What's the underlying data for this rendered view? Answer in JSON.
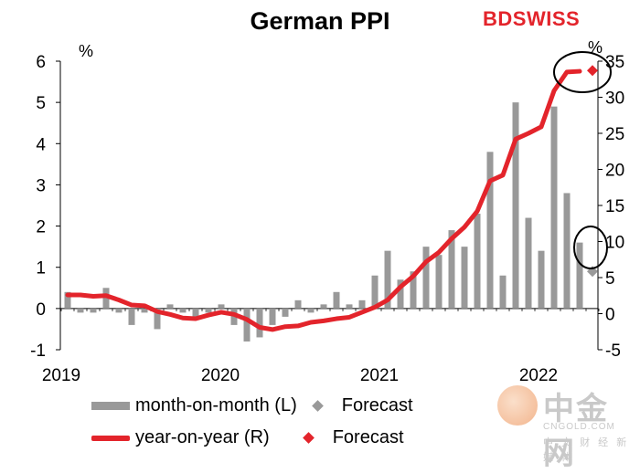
{
  "brand": {
    "part1": "BD",
    "part2": "SWISS"
  },
  "watermark": {
    "name": "中金网",
    "url": "CNGOLD.COM",
    "tagline": "中 文 财 经 新 媒 体"
  },
  "legend": {
    "bar_label": "month-on-month (L)",
    "bar_forecast_label": "Forecast",
    "line_label": "year-on-year (R)",
    "line_forecast_label": "Forecast"
  },
  "chart_data": {
    "type": "bar+line",
    "title": "German PPI",
    "left_axis": {
      "unit": "%",
      "ylim": [
        -1,
        6
      ],
      "ticks": [
        "-1",
        "0",
        "1",
        "2",
        "3",
        "4",
        "5",
        "6"
      ]
    },
    "right_axis": {
      "unit": "%",
      "ylim": [
        -5,
        35
      ],
      "ticks": [
        "-5",
        "0",
        "5",
        "10",
        "15",
        "20",
        "25",
        "30",
        "35"
      ]
    },
    "x_ticks": [
      "2019",
      "2020",
      "2021",
      "2022"
    ],
    "months": [
      "2019-01",
      "2019-02",
      "2019-03",
      "2019-04",
      "2019-05",
      "2019-06",
      "2019-07",
      "2019-08",
      "2019-09",
      "2019-10",
      "2019-11",
      "2019-12",
      "2020-01",
      "2020-02",
      "2020-03",
      "2020-04",
      "2020-05",
      "2020-06",
      "2020-07",
      "2020-08",
      "2020-09",
      "2020-10",
      "2020-11",
      "2020-12",
      "2021-01",
      "2021-02",
      "2021-03",
      "2021-04",
      "2021-05",
      "2021-06",
      "2021-07",
      "2021-08",
      "2021-09",
      "2021-10",
      "2021-11",
      "2021-12",
      "2022-01",
      "2022-02",
      "2022-03",
      "2022-04",
      "2022-05",
      "2022-06"
    ],
    "series": [
      {
        "name": "month-on-month (L)",
        "axis": "left",
        "kind": "bar",
        "color": "#999999",
        "values": [
          0.4,
          -0.1,
          -0.1,
          0.5,
          -0.1,
          -0.4,
          -0.1,
          -0.5,
          0.1,
          -0.1,
          -0.2,
          -0.1,
          0.1,
          -0.4,
          -0.8,
          -0.7,
          -0.4,
          -0.2,
          0.2,
          -0.1,
          0.1,
          0.4,
          0.1,
          0.2,
          0.8,
          1.4,
          0.7,
          0.9,
          1.5,
          1.3,
          1.9,
          1.5,
          2.3,
          3.8,
          0.8,
          5.0,
          2.2,
          1.4,
          4.9,
          2.8,
          1.6,
          null
        ]
      },
      {
        "name": "year-on-year (R)",
        "axis": "right",
        "kind": "line",
        "color": "#e3242b",
        "values": [
          2.6,
          2.6,
          2.4,
          2.5,
          1.9,
          1.2,
          1.1,
          0.3,
          -0.1,
          -0.6,
          -0.7,
          -0.2,
          0.2,
          -0.1,
          -0.8,
          -1.9,
          -2.2,
          -1.8,
          -1.7,
          -1.2,
          -1.0,
          -0.7,
          -0.5,
          0.2,
          0.9,
          1.9,
          3.7,
          5.2,
          7.2,
          8.5,
          10.4,
          12.0,
          14.2,
          18.4,
          19.2,
          24.2,
          25.0,
          25.9,
          30.9,
          33.5,
          33.6,
          null
        ]
      }
    ],
    "forecast": {
      "month": "2022-06",
      "mom": 0.9,
      "yoy": 33.7
    }
  }
}
